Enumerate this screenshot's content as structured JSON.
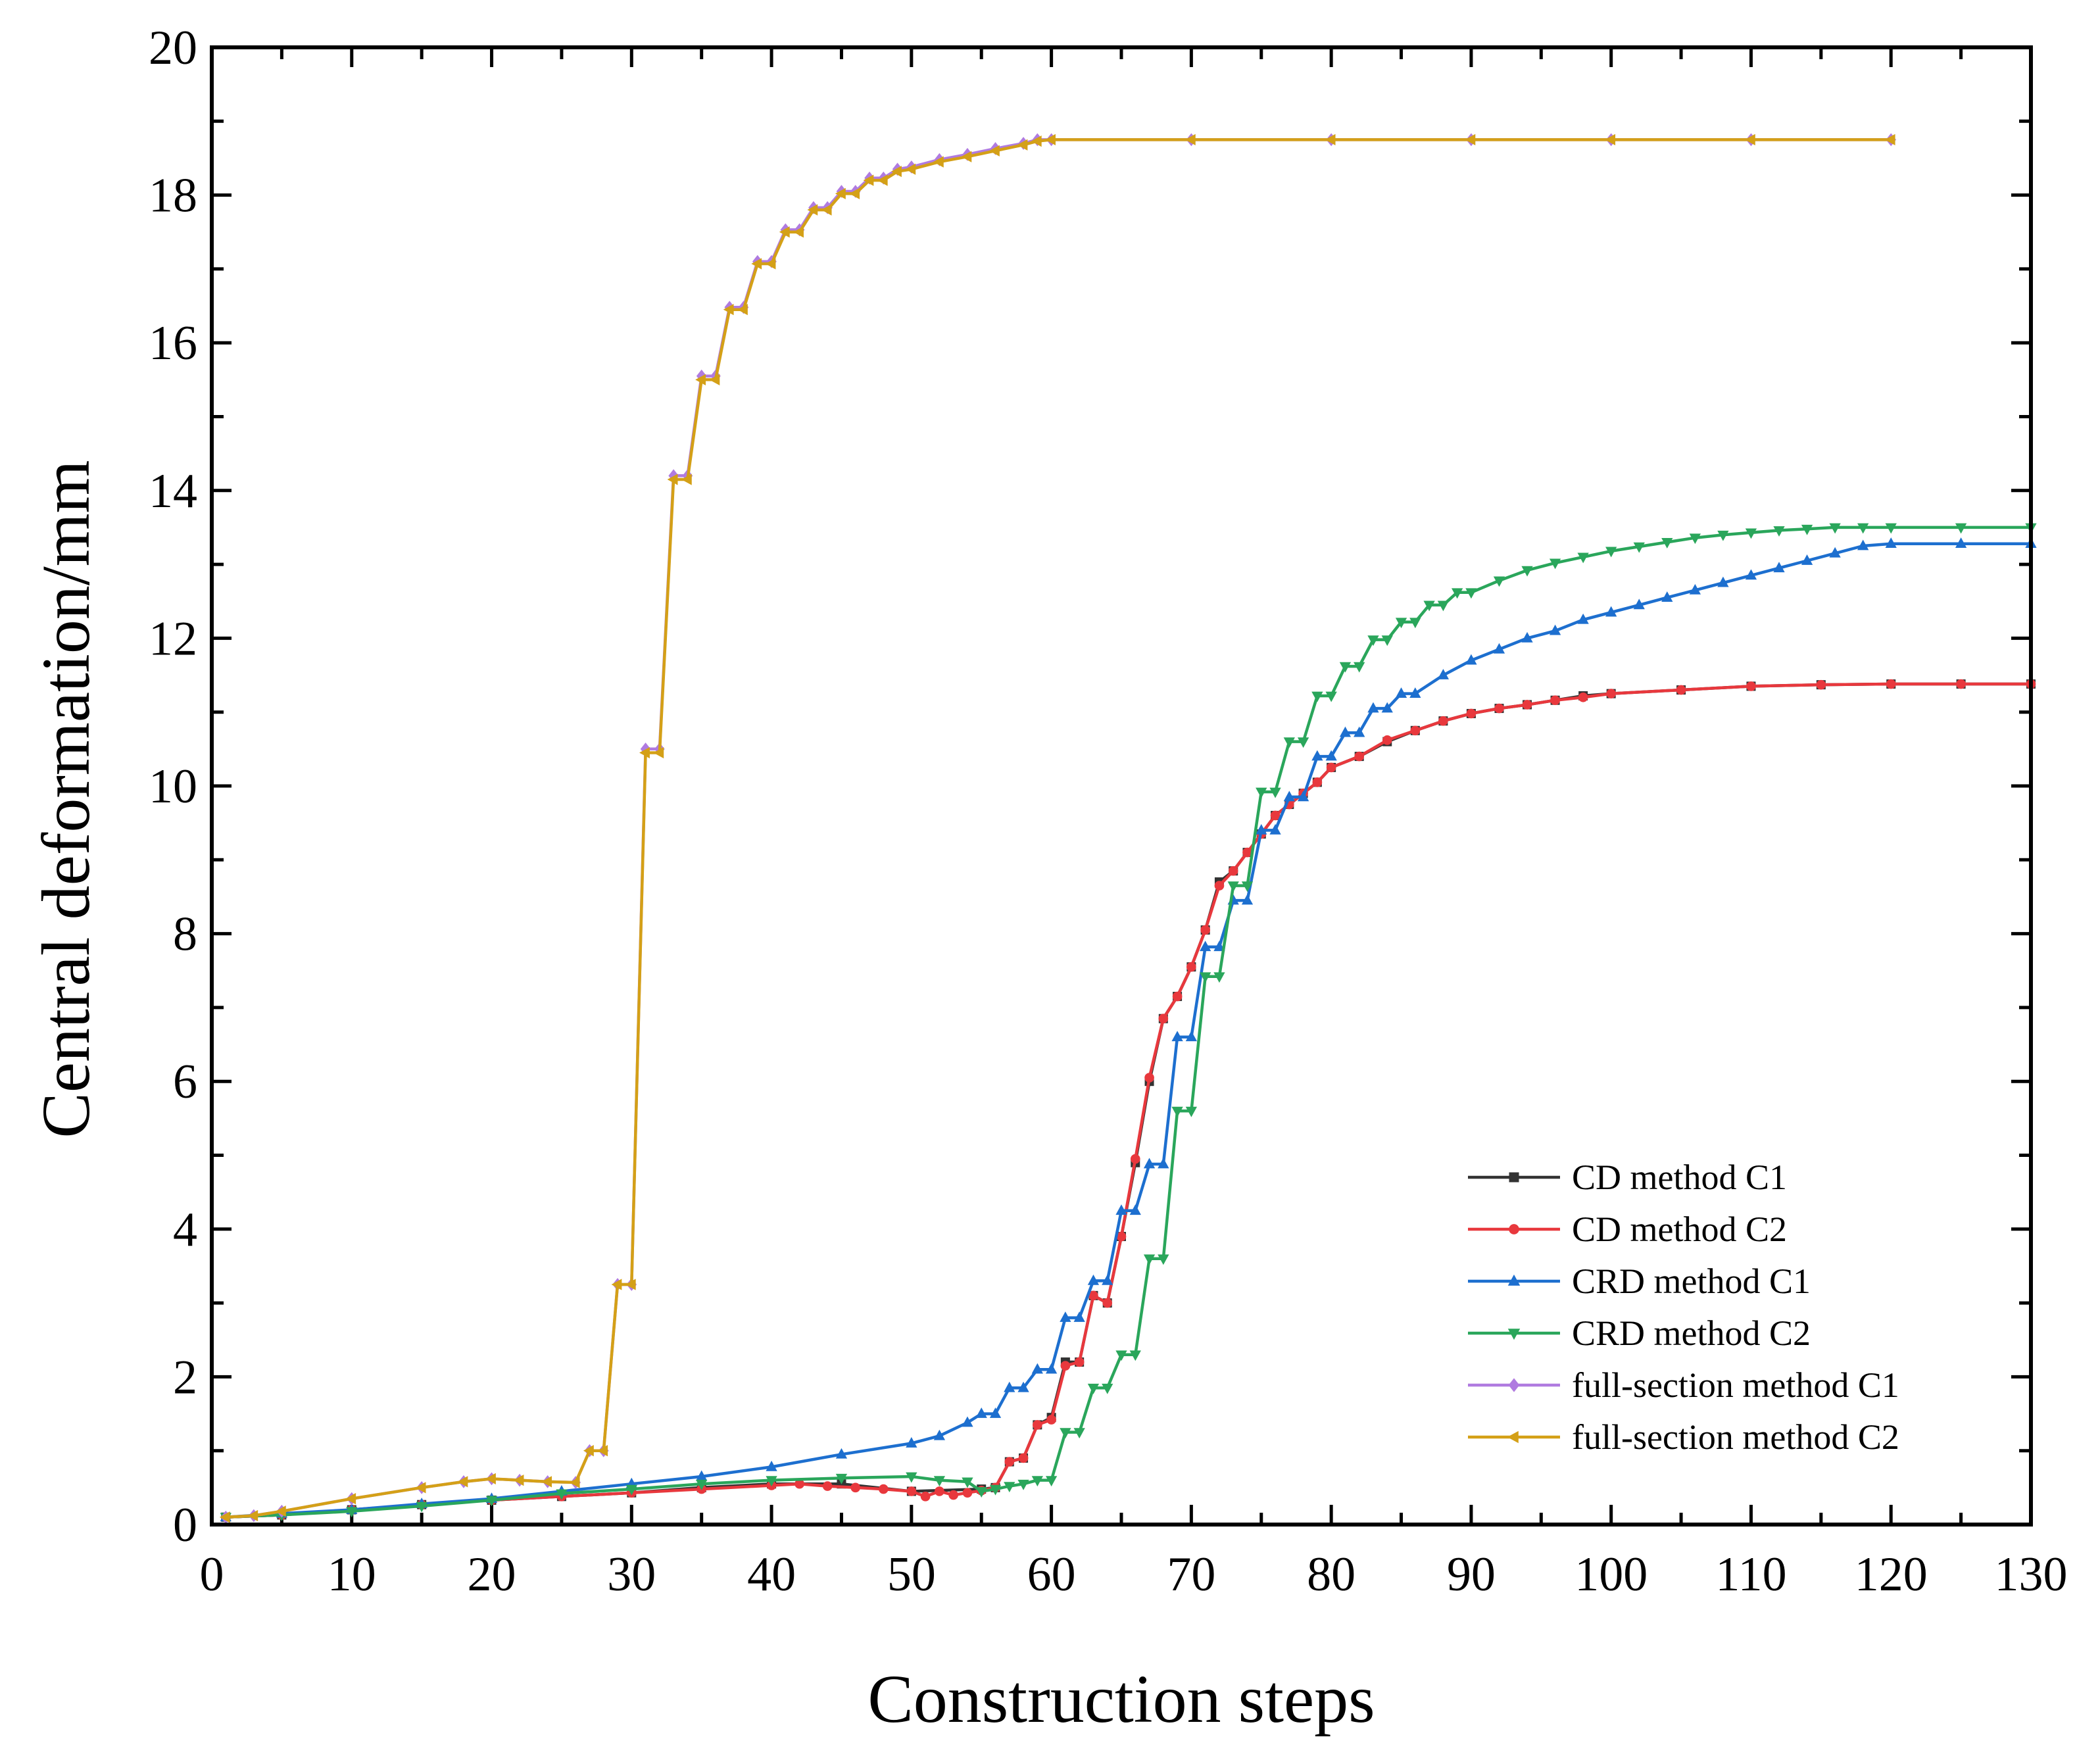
{
  "chart_data": {
    "type": "line",
    "xlabel": "Construction steps",
    "ylabel": "Central deformation/mm",
    "xlim": [
      0,
      130
    ],
    "ylim": [
      0,
      20
    ],
    "xticks": [
      "0",
      "10",
      "20",
      "30",
      "40",
      "50",
      "60",
      "70",
      "80",
      "90",
      "100",
      "110",
      "120",
      "130"
    ],
    "yticks": [
      "0",
      "2",
      "4",
      "6",
      "8",
      "10",
      "12",
      "14",
      "16",
      "18",
      "20"
    ],
    "grid": false,
    "legend_position": "bottom-right",
    "series": [
      {
        "name": "CD method C1",
        "color": "#333333",
        "marker": "square",
        "x": [
          1,
          5,
          10,
          15,
          20,
          25,
          30,
          35,
          40,
          45,
          50,
          55,
          56,
          57,
          58,
          59,
          60,
          61,
          62,
          63,
          64,
          65,
          66,
          67,
          68,
          69,
          70,
          71,
          72,
          73,
          74,
          75,
          76,
          77,
          78,
          79,
          80,
          82,
          84,
          86,
          88,
          90,
          92,
          94,
          96,
          98,
          100,
          105,
          110,
          115,
          120,
          125,
          130
        ],
        "y": [
          0.1,
          0.13,
          0.2,
          0.27,
          0.33,
          0.38,
          0.43,
          0.5,
          0.55,
          0.55,
          0.45,
          0.48,
          0.5,
          0.85,
          0.9,
          1.35,
          1.45,
          2.2,
          2.2,
          3.1,
          3.0,
          3.9,
          4.9,
          6.0,
          6.85,
          7.15,
          7.55,
          8.05,
          8.7,
          8.85,
          9.1,
          9.35,
          9.6,
          9.75,
          9.9,
          10.05,
          10.25,
          10.4,
          10.6,
          10.75,
          10.88,
          10.98,
          11.05,
          11.1,
          11.16,
          11.22,
          11.25,
          11.3,
          11.35,
          11.37,
          11.38,
          11.38,
          11.38
        ]
      },
      {
        "name": "CD method C2",
        "color": "#e8383d",
        "marker": "circle",
        "x": [
          1,
          5,
          10,
          15,
          20,
          25,
          30,
          35,
          40,
          42,
          44,
          46,
          48,
          50,
          51,
          52,
          53,
          54,
          55,
          56,
          57,
          58,
          59,
          60,
          61,
          62,
          63,
          64,
          65,
          66,
          67,
          68,
          69,
          70,
          71,
          72,
          73,
          74,
          75,
          76,
          77,
          78,
          79,
          80,
          82,
          84,
          86,
          88,
          90,
          92,
          94,
          96,
          98,
          100,
          105,
          110,
          115,
          120,
          125,
          130
        ],
        "y": [
          0.1,
          0.13,
          0.2,
          0.27,
          0.33,
          0.38,
          0.43,
          0.48,
          0.53,
          0.55,
          0.52,
          0.5,
          0.48,
          0.45,
          0.38,
          0.45,
          0.4,
          0.43,
          0.46,
          0.5,
          0.85,
          0.9,
          1.35,
          1.42,
          2.15,
          2.2,
          3.1,
          3.0,
          3.9,
          4.95,
          6.05,
          6.85,
          7.15,
          7.55,
          8.05,
          8.65,
          8.85,
          9.1,
          9.35,
          9.6,
          9.75,
          9.9,
          10.05,
          10.25,
          10.4,
          10.62,
          10.75,
          10.88,
          10.98,
          11.05,
          11.1,
          11.16,
          11.2,
          11.25,
          11.3,
          11.35,
          11.37,
          11.38,
          11.38,
          11.38
        ]
      },
      {
        "name": "CRD method C1",
        "color": "#1d6fcf",
        "marker": "triangle-up",
        "x": [
          1,
          5,
          10,
          15,
          20,
          25,
          30,
          35,
          40,
          45,
          50,
          52,
          54,
          55,
          56,
          57,
          58,
          59,
          60,
          61,
          62,
          63,
          64,
          65,
          66,
          67,
          68,
          69,
          70,
          71,
          72,
          73,
          74,
          75,
          76,
          77,
          78,
          79,
          80,
          81,
          82,
          83,
          84,
          85,
          86,
          88,
          90,
          92,
          94,
          96,
          98,
          100,
          102,
          104,
          106,
          108,
          110,
          112,
          114,
          116,
          118,
          120,
          125,
          130
        ],
        "y": [
          0.1,
          0.15,
          0.2,
          0.28,
          0.35,
          0.45,
          0.55,
          0.65,
          0.78,
          0.95,
          1.1,
          1.2,
          1.38,
          1.5,
          1.5,
          1.85,
          1.85,
          2.1,
          2.1,
          2.8,
          2.8,
          3.3,
          3.3,
          4.25,
          4.25,
          4.88,
          4.88,
          6.6,
          6.6,
          7.82,
          7.82,
          8.45,
          8.45,
          9.4,
          9.4,
          9.85,
          9.85,
          10.4,
          10.4,
          10.72,
          10.72,
          11.05,
          11.05,
          11.25,
          11.25,
          11.5,
          11.7,
          11.85,
          12.0,
          12.1,
          12.25,
          12.35,
          12.45,
          12.55,
          12.65,
          12.75,
          12.85,
          12.95,
          13.05,
          13.15,
          13.25,
          13.28,
          13.28,
          13.28
        ]
      },
      {
        "name": "CRD method C2",
        "color": "#2aa65b",
        "marker": "triangle-down",
        "x": [
          1,
          5,
          10,
          15,
          20,
          25,
          30,
          35,
          40,
          45,
          50,
          52,
          54,
          55,
          56,
          57,
          58,
          59,
          60,
          61,
          62,
          63,
          64,
          65,
          66,
          67,
          68,
          69,
          70,
          71,
          72,
          73,
          74,
          75,
          76,
          77,
          78,
          79,
          80,
          81,
          82,
          83,
          84,
          85,
          86,
          87,
          88,
          89,
          90,
          92,
          94,
          96,
          98,
          100,
          102,
          104,
          106,
          108,
          110,
          112,
          114,
          116,
          118,
          120,
          125,
          130
        ],
        "y": [
          0.1,
          0.13,
          0.18,
          0.25,
          0.33,
          0.42,
          0.48,
          0.55,
          0.6,
          0.63,
          0.65,
          0.6,
          0.58,
          0.45,
          0.48,
          0.52,
          0.55,
          0.6,
          0.6,
          1.25,
          1.25,
          1.85,
          1.85,
          2.3,
          2.3,
          3.6,
          3.6,
          5.6,
          5.6,
          7.42,
          7.42,
          8.65,
          8.65,
          9.92,
          9.92,
          10.6,
          10.6,
          11.22,
          11.22,
          11.62,
          11.62,
          11.98,
          11.98,
          12.22,
          12.22,
          12.45,
          12.45,
          12.62,
          12.62,
          12.78,
          12.92,
          13.02,
          13.1,
          13.18,
          13.24,
          13.3,
          13.36,
          13.4,
          13.43,
          13.46,
          13.48,
          13.5,
          13.5,
          13.5,
          13.5,
          13.5
        ]
      },
      {
        "name": "full-section method C1",
        "color": "#b07be0",
        "marker": "diamond",
        "x": [
          1,
          3,
          5,
          10,
          15,
          18,
          20,
          22,
          24,
          26,
          27,
          28,
          29,
          30,
          31,
          32,
          33,
          34,
          35,
          36,
          37,
          38,
          39,
          40,
          41,
          42,
          43,
          44,
          45,
          46,
          47,
          48,
          49,
          50,
          52,
          54,
          56,
          58,
          59,
          60,
          70,
          80,
          90,
          100,
          110,
          120
        ],
        "y": [
          0.1,
          0.12,
          0.18,
          0.35,
          0.5,
          0.58,
          0.62,
          0.6,
          0.58,
          0.57,
          1.0,
          1.0,
          3.25,
          3.25,
          10.5,
          10.5,
          14.2,
          14.2,
          15.55,
          15.55,
          16.48,
          16.48,
          17.1,
          17.1,
          17.53,
          17.53,
          17.83,
          17.83,
          18.05,
          18.05,
          18.23,
          18.23,
          18.35,
          18.38,
          18.48,
          18.55,
          18.63,
          18.7,
          18.75,
          18.75,
          18.75,
          18.75,
          18.75,
          18.75,
          18.75,
          18.75
        ]
      },
      {
        "name": "full-section method C2",
        "color": "#d4a017",
        "marker": "triangle-left",
        "x": [
          1,
          3,
          5,
          10,
          15,
          18,
          20,
          22,
          24,
          26,
          27,
          28,
          29,
          30,
          31,
          32,
          33,
          34,
          35,
          36,
          37,
          38,
          39,
          40,
          41,
          42,
          43,
          44,
          45,
          46,
          47,
          48,
          49,
          50,
          52,
          54,
          56,
          58,
          59,
          60,
          70,
          80,
          90,
          100,
          110,
          120
        ],
        "y": [
          0.1,
          0.12,
          0.18,
          0.35,
          0.5,
          0.58,
          0.62,
          0.6,
          0.58,
          0.57,
          1.0,
          1.0,
          3.25,
          3.25,
          10.45,
          10.45,
          14.15,
          14.15,
          15.5,
          15.5,
          16.45,
          16.45,
          17.07,
          17.07,
          17.5,
          17.5,
          17.8,
          17.8,
          18.02,
          18.02,
          18.2,
          18.2,
          18.32,
          18.35,
          18.45,
          18.52,
          18.6,
          18.68,
          18.73,
          18.75,
          18.75,
          18.75,
          18.75,
          18.75,
          18.75,
          18.75
        ]
      }
    ]
  }
}
